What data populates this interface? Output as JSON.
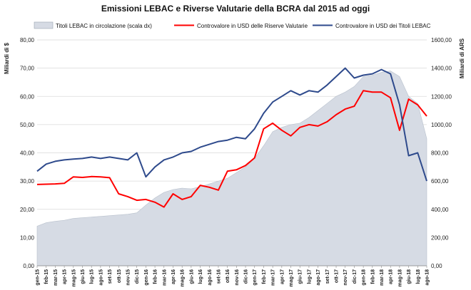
{
  "chart_data": {
    "type": "line",
    "title": "Emissioni LEBAC e Riverse Valutarie della BCRA dal 2015 ad oggi",
    "ylabel_left": "Miliardi di $",
    "ylabel_right": "Miliardi di ARS",
    "ylim_left": [
      0,
      80
    ],
    "ylim_right": [
      0,
      1600
    ],
    "yticks_left": [
      "0,00",
      "10,00",
      "20,00",
      "30,00",
      "40,00",
      "50,00",
      "60,00",
      "70,00",
      "80,00"
    ],
    "yticks_right": [
      "0,00",
      "200,00",
      "400,00",
      "600,00",
      "800,00",
      "1000,00",
      "1200,00",
      "1400,00",
      "1600,00"
    ],
    "grid": true,
    "legend_position": "top",
    "categories": [
      "gen-15",
      "feb-15",
      "mar-15",
      "apr-15",
      "mag-15",
      "giu-15",
      "lug-15",
      "ago-15",
      "set-15",
      "ott-15",
      "nov-15",
      "dic-15",
      "gen-16",
      "feb-16",
      "mar-16",
      "apr-16",
      "mag-16",
      "giu-16",
      "lug-16",
      "ago-16",
      "set-16",
      "ott-16",
      "nov-16",
      "dic-16",
      "gen-17",
      "feb-17",
      "mar-17",
      "apr-17",
      "mag-17",
      "giu-17",
      "lug-17",
      "ago-17",
      "set-17",
      "ott-17",
      "nov-17",
      "dic-17",
      "gen-18",
      "feb-18",
      "mar-18",
      "apr-18",
      "mag-18",
      "giu-18",
      "lug-18",
      "ago-18"
    ],
    "series": [
      {
        "name": "Titoli LEBAC in circolazione (scala dx)",
        "type": "area",
        "axis": "right",
        "color": "#d6dbe4",
        "values": [
          280,
          305,
          315,
          322,
          335,
          340,
          345,
          350,
          355,
          360,
          365,
          375,
          430,
          480,
          520,
          540,
          550,
          545,
          560,
          580,
          600,
          620,
          660,
          700,
          760,
          850,
          950,
          980,
          1000,
          1010,
          1050,
          1100,
          1150,
          1200,
          1230,
          1270,
          1340,
          1350,
          1370,
          1380,
          1340,
          1200,
          1150,
          900
        ]
      },
      {
        "name": "Controvalore in USD delle Riserve Valutarie",
        "type": "line",
        "axis": "left",
        "color": "#ff0000",
        "values": [
          28.8,
          28.9,
          29.0,
          29.2,
          31.5,
          31.3,
          31.6,
          31.5,
          31.2,
          25.5,
          24.5,
          23.2,
          23.5,
          22.5,
          20.8,
          25.5,
          23.5,
          24.5,
          28.5,
          27.8,
          26.8,
          33.5,
          34.0,
          35.5,
          38.2,
          48.5,
          50.5,
          48.0,
          46.0,
          49.0,
          50.0,
          49.5,
          51.0,
          53.5,
          55.5,
          56.5,
          62.0,
          61.5,
          61.5,
          59.5,
          48.0,
          59.0,
          57.0,
          53.0
        ]
      },
      {
        "name": "Controvalore in USD dei Titoli LEBAC",
        "type": "line",
        "axis": "left",
        "color": "#2e4a8c",
        "values": [
          33.5,
          36.0,
          37.0,
          37.5,
          37.8,
          38.0,
          38.5,
          38.0,
          38.5,
          38.0,
          37.5,
          40.0,
          31.5,
          35.0,
          37.5,
          38.5,
          40.0,
          40.5,
          42.0,
          43.0,
          44.0,
          44.5,
          45.5,
          45.0,
          48.5,
          54.0,
          58.0,
          60.0,
          62.0,
          60.5,
          62.0,
          61.5,
          64.0,
          67.0,
          70.0,
          66.5,
          67.5,
          68.0,
          69.5,
          68.0,
          57.0,
          39.0,
          40.0,
          30.0
        ]
      }
    ]
  }
}
